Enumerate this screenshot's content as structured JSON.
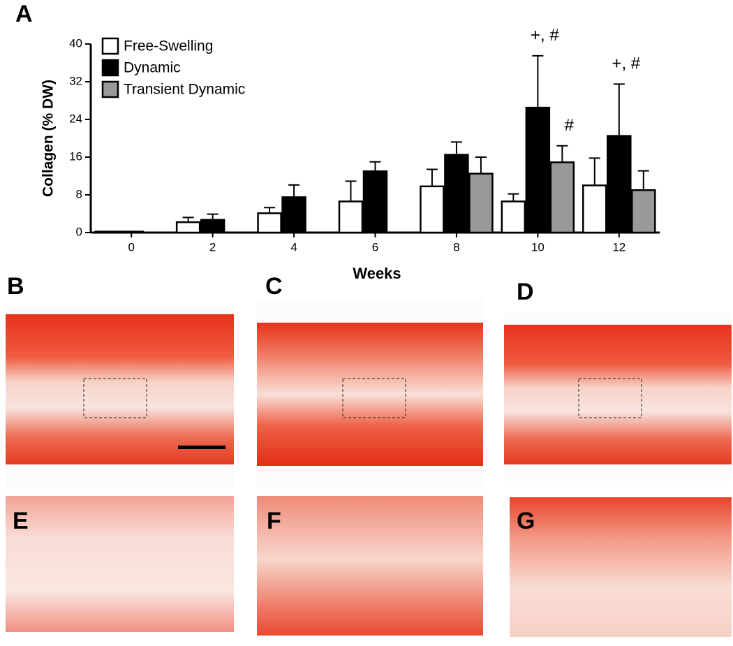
{
  "chart_data": {
    "type": "bar",
    "y_label": "Collagen  (% DW)",
    "x_label": "Weeks",
    "categories": [
      "0",
      "2",
      "4",
      "6",
      "8",
      "10",
      "12"
    ],
    "series": [
      {
        "name": "Free-Swelling",
        "color": "#ffffff",
        "values": [
          0.2,
          2.2,
          4.1,
          6.6,
          9.8,
          6.6,
          10.0
        ],
        "errors": [
          0,
          1.0,
          1.2,
          4.3,
          3.6,
          1.6,
          5.8
        ],
        "annotations": [
          null,
          null,
          null,
          null,
          null,
          null,
          null
        ]
      },
      {
        "name": "Dynamic",
        "color": "#000000",
        "values": [
          0.2,
          2.7,
          7.5,
          13.0,
          16.5,
          26.5,
          20.5
        ],
        "errors": [
          0,
          1.2,
          2.6,
          2.0,
          2.7,
          11.0,
          11.0
        ],
        "annotations": [
          null,
          null,
          null,
          null,
          null,
          "+, #",
          "+, #"
        ]
      },
      {
        "name": "Transient Dynamic",
        "color": "#999999",
        "values": [
          null,
          null,
          null,
          null,
          12.5,
          14.9,
          9.0
        ],
        "errors": [
          null,
          null,
          null,
          null,
          3.5,
          3.5,
          4.1
        ],
        "annotations": [
          null,
          null,
          null,
          null,
          null,
          "#",
          null
        ]
      }
    ],
    "ylim": [
      0,
      40
    ],
    "yticks": [
      0,
      8,
      16,
      24,
      32,
      40
    ],
    "grid": false,
    "legend": "top-left"
  },
  "panel_labels": [
    "A",
    "B",
    "C",
    "D",
    "E",
    "F",
    "G"
  ]
}
